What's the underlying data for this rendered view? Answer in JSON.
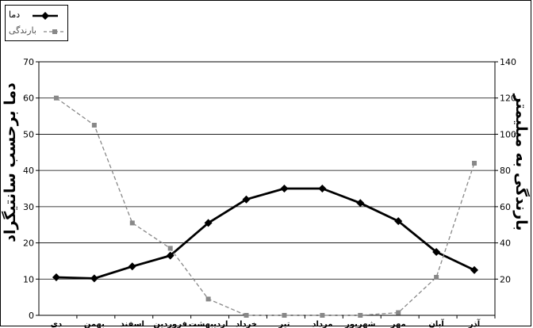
{
  "chart_data": {
    "type": "line",
    "categories": [
      "دی",
      "بهمن",
      "اسفند",
      "فروردین",
      "اردیبهشت",
      "خرداد",
      "تیر",
      "مرداد",
      "شهریور",
      "مهر",
      "آبان",
      "آذر"
    ],
    "series": [
      {
        "name": "دما",
        "axis": "left",
        "color": "#000000",
        "style": "solid",
        "marker": "diamond",
        "values": [
          10.5,
          10.2,
          13.5,
          16.5,
          25.5,
          32,
          35,
          35,
          31,
          26,
          17.5,
          12.5
        ]
      },
      {
        "name": "بارندگی",
        "axis": "right",
        "color": "#888888",
        "style": "dashed",
        "marker": "square",
        "values": [
          120,
          105,
          51,
          37,
          9,
          0,
          0,
          0,
          0,
          1.5,
          21,
          84
        ]
      }
    ],
    "y_left": {
      "label": "دما برحسب سانتیگراد",
      "ylim": [
        0,
        70
      ],
      "ticks": [
        0,
        10,
        20,
        30,
        40,
        50,
        60,
        70
      ]
    },
    "y_right": {
      "label": "بارندگی به میلیمتر",
      "ylim": [
        0,
        140
      ],
      "ticks": [
        20,
        40,
        60,
        80,
        100,
        120,
        140
      ]
    },
    "grid": true,
    "legend_position": "top-left"
  }
}
